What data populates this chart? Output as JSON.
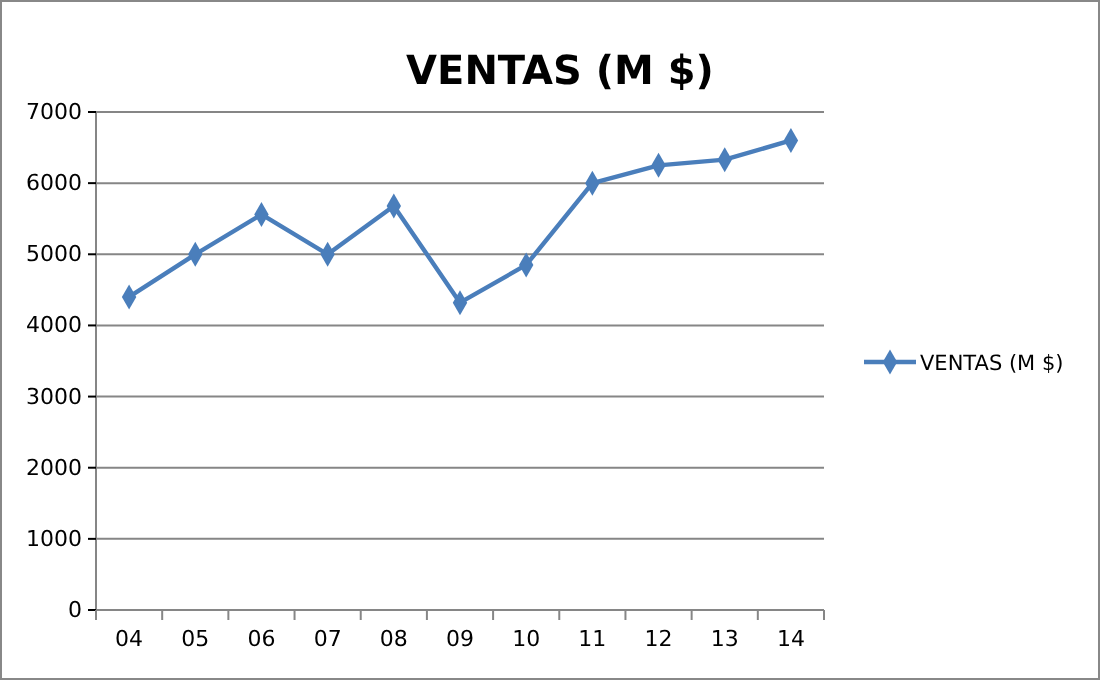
{
  "chart_data": {
    "type": "line",
    "title": "VENTAS (M $)",
    "categories": [
      "04",
      "05",
      "06",
      "07",
      "08",
      "09",
      "10",
      "11",
      "12",
      "13",
      "14"
    ],
    "series": [
      {
        "name": "VENTAS (M $)",
        "color": "#4a7ebb",
        "values": [
          4400,
          5000,
          5560,
          5000,
          5680,
          4320,
          4850,
          6000,
          6250,
          6330,
          6600
        ]
      }
    ],
    "ylim": [
      0,
      7000
    ],
    "yticks": [
      0,
      1000,
      2000,
      3000,
      4000,
      5000,
      6000,
      7000
    ],
    "grid": "y",
    "legend": "right",
    "marker": "diamond",
    "line_style": "solid"
  }
}
